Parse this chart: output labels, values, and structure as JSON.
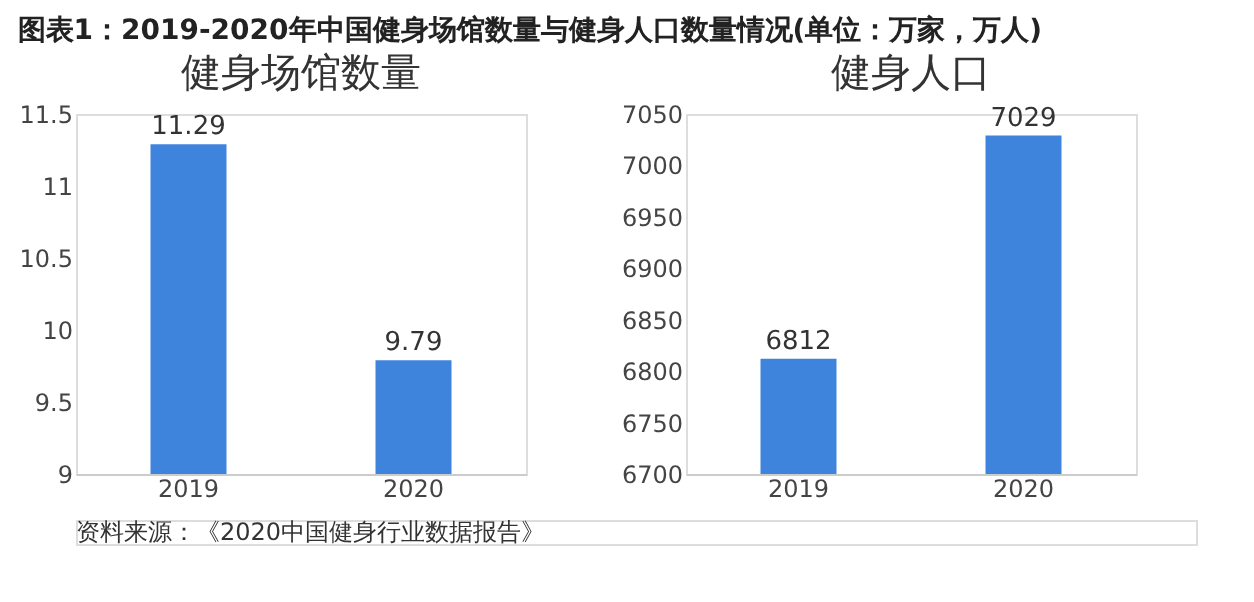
{
  "chart_data": [
    {
      "type": "bar",
      "title": "健身场馆数量",
      "categories": [
        "2019",
        "2020"
      ],
      "values": [
        11.29,
        9.79
      ],
      "color": "#3f84dc",
      "ylim": [
        9,
        11.5
      ],
      "yticks": [
        9,
        9.5,
        10,
        10.5,
        11,
        11.5
      ],
      "data_labels": true,
      "grid": false,
      "annotations": [
        "图表1：2019-2020年中国健身场馆数量与健身人口数量情况(单位：万家，万人)",
        "资料来源：《2020中国健身行业数据报告》"
      ]
    },
    {
      "type": "bar",
      "title": "健身人口",
      "categories": [
        "2019",
        "2020"
      ],
      "values": [
        6812,
        7029
      ],
      "color": "#3f84dc",
      "ylim": [
        6700,
        7050
      ],
      "yticks": [
        6700,
        6750,
        6800,
        6850,
        6900,
        6950,
        7000,
        7050
      ],
      "data_labels": true,
      "grid": false
    }
  ]
}
